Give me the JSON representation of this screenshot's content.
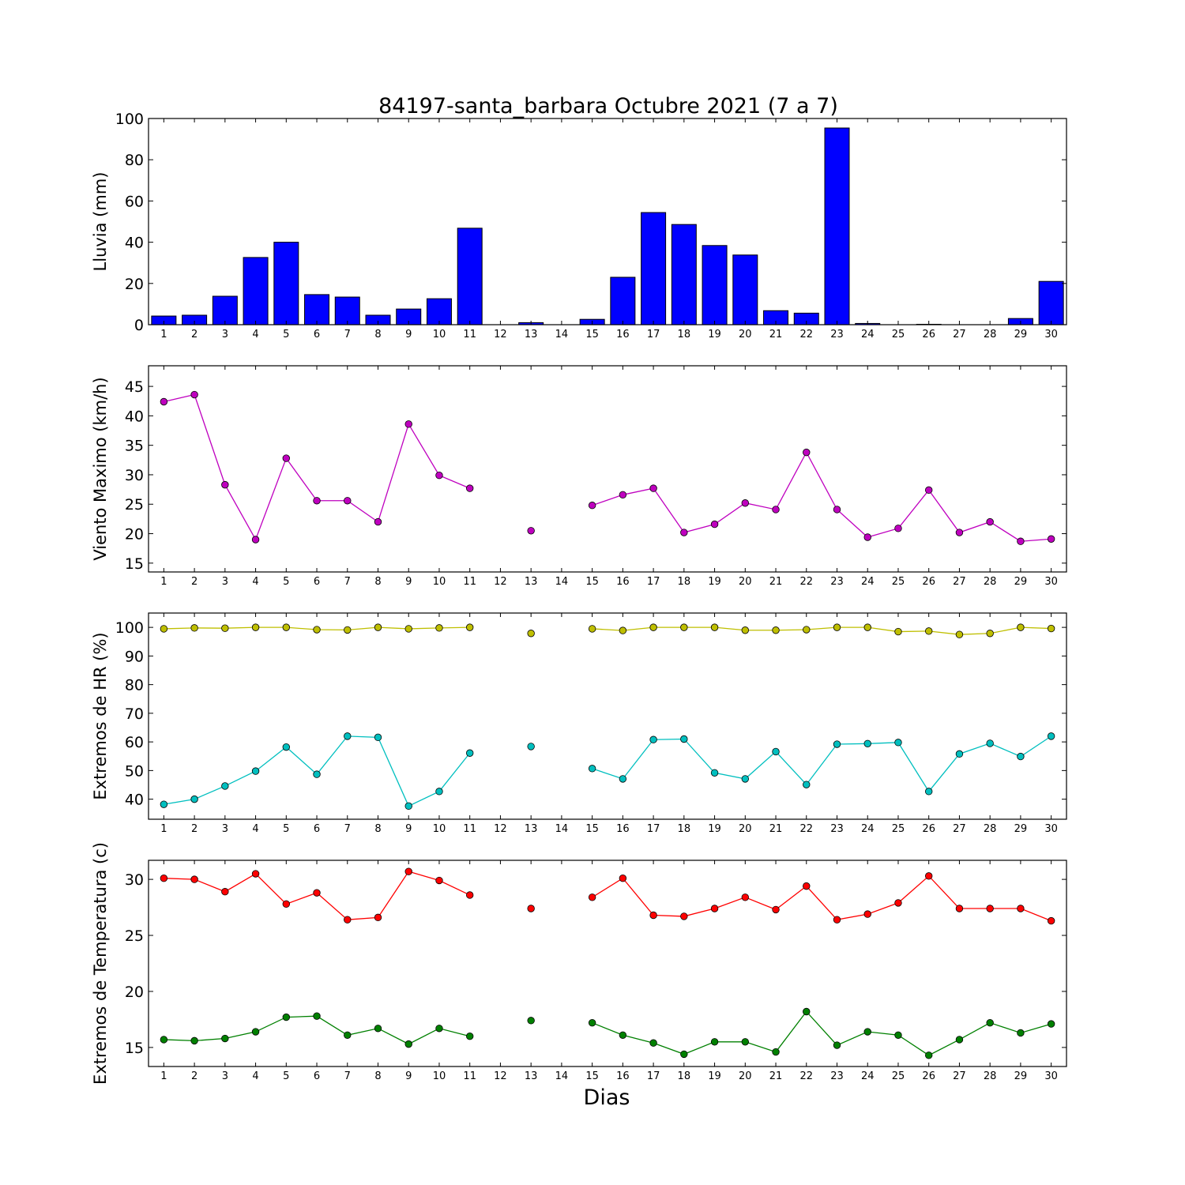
{
  "title": "84197-santa_barbara Octubre 2021  (7 a 7)",
  "xlabel": "Dias",
  "chart_data": [
    {
      "type": "bar",
      "ylabel": "Lluvia (mm)",
      "x": [
        1,
        2,
        3,
        4,
        5,
        6,
        7,
        8,
        9,
        10,
        11,
        12,
        13,
        14,
        15,
        16,
        17,
        18,
        19,
        20,
        21,
        22,
        23,
        24,
        25,
        26,
        27,
        28,
        29,
        30
      ],
      "x_tick_labels": [
        "1",
        "2",
        "3",
        "4",
        "5",
        "6",
        "7",
        "8",
        "9",
        "10",
        "11",
        "12",
        "13",
        "14",
        "15",
        "16",
        "17",
        "18",
        "19",
        "20",
        "21",
        "22",
        "23",
        "24",
        "25",
        "26",
        "27",
        "28",
        "29",
        "30"
      ],
      "values": [
        4.2,
        4.6,
        13.8,
        32.6,
        40.0,
        14.6,
        13.4,
        4.6,
        7.6,
        12.6,
        46.8,
        0,
        1.0,
        0,
        2.6,
        23.0,
        54.4,
        48.6,
        38.4,
        33.8,
        6.8,
        5.6,
        95.4,
        0.6,
        0,
        0.2,
        0,
        0,
        3.0,
        21.0
      ],
      "ylim": [
        0,
        100
      ],
      "yticks": [
        0,
        20,
        40,
        60,
        80,
        100
      ],
      "color": "#0000ff"
    },
    {
      "type": "line",
      "ylabel": "Viento Maximo (km/h)",
      "x": [
        1,
        2,
        3,
        4,
        5,
        6,
        7,
        8,
        9,
        10,
        11,
        12,
        13,
        14,
        15,
        16,
        17,
        18,
        19,
        20,
        21,
        22,
        23,
        24,
        25,
        26,
        27,
        28,
        29,
        30
      ],
      "x_tick_labels": [
        "1",
        "2",
        "3",
        "4",
        "5",
        "6",
        "7",
        "8",
        "9",
        "10",
        "11",
        "12",
        "13",
        "14",
        "15",
        "16",
        "17",
        "18",
        "19",
        "20",
        "21",
        "22",
        "23",
        "24",
        "25",
        "26",
        "27",
        "28",
        "29",
        "30"
      ],
      "ylim": [
        13.5,
        48.5
      ],
      "yticks": [
        15,
        20,
        25,
        30,
        35,
        40,
        45
      ],
      "series": [
        {
          "color": "#bf00bf",
          "values": [
            42.4,
            43.6,
            28.3,
            19.0,
            32.8,
            25.6,
            25.6,
            22.0,
            38.6,
            29.9,
            27.7,
            null,
            20.5,
            null,
            24.8,
            26.6,
            27.7,
            20.2,
            21.6,
            25.2,
            24.1,
            33.8,
            24.1,
            19.4,
            20.9,
            27.4,
            20.2,
            22.0,
            18.7,
            19.1
          ]
        }
      ]
    },
    {
      "type": "line",
      "ylabel": "Extremos de HR (%)",
      "x": [
        1,
        2,
        3,
        4,
        5,
        6,
        7,
        8,
        9,
        10,
        11,
        12,
        13,
        14,
        15,
        16,
        17,
        18,
        19,
        20,
        21,
        22,
        23,
        24,
        25,
        26,
        27,
        28,
        29,
        30
      ],
      "x_tick_labels": [
        "1",
        "2",
        "3",
        "4",
        "5",
        "6",
        "7",
        "8",
        "9",
        "10",
        "11",
        "12",
        "13",
        "14",
        "15",
        "16",
        "17",
        "18",
        "19",
        "20",
        "21",
        "22",
        "23",
        "24",
        "25",
        "26",
        "27",
        "28",
        "29",
        "30"
      ],
      "ylim": [
        33,
        105
      ],
      "yticks": [
        40,
        50,
        60,
        70,
        80,
        90,
        100
      ],
      "series": [
        {
          "color": "#bfbf00",
          "values": [
            99.5,
            99.8,
            99.7,
            100,
            100,
            99.2,
            99.1,
            100,
            99.5,
            99.8,
            100,
            null,
            97.9,
            null,
            99.5,
            98.9,
            100,
            100,
            100,
            99.0,
            99.0,
            99.2,
            100,
            100,
            98.5,
            98.7,
            97.5,
            97.9,
            100,
            99.6
          ]
        },
        {
          "color": "#00bfbf",
          "values": [
            38.2,
            40.0,
            44.6,
            49.8,
            58.2,
            48.7,
            62.0,
            61.6,
            37.6,
            42.7,
            56.1,
            null,
            58.4,
            null,
            50.7,
            47.1,
            60.8,
            61.0,
            49.2,
            47.1,
            56.6,
            45.1,
            59.2,
            59.4,
            59.8,
            42.7,
            55.8,
            59.5,
            54.9,
            62.0
          ]
        }
      ]
    },
    {
      "type": "line",
      "ylabel": "Extremos de Temperatura (c)",
      "x": [
        1,
        2,
        3,
        4,
        5,
        6,
        7,
        8,
        9,
        10,
        11,
        12,
        13,
        14,
        15,
        16,
        17,
        18,
        19,
        20,
        21,
        22,
        23,
        24,
        25,
        26,
        27,
        28,
        29,
        30
      ],
      "x_tick_labels": [
        "1",
        "2",
        "3",
        "4",
        "5",
        "6",
        "7",
        "8",
        "9",
        "10",
        "11",
        "12",
        "13",
        "14",
        "15",
        "16",
        "17",
        "18",
        "19",
        "20",
        "21",
        "22",
        "23",
        "24",
        "25",
        "26",
        "27",
        "28",
        "29",
        "30"
      ],
      "ylim": [
        13.3,
        31.7
      ],
      "yticks": [
        15,
        20,
        25,
        30
      ],
      "series": [
        {
          "color": "#ff0000",
          "values": [
            30.1,
            30.0,
            28.9,
            30.5,
            27.8,
            28.8,
            26.4,
            26.6,
            30.7,
            29.9,
            28.6,
            null,
            27.4,
            null,
            28.4,
            30.1,
            26.8,
            26.7,
            27.4,
            28.4,
            27.3,
            29.4,
            26.4,
            26.9,
            27.9,
            30.3,
            27.4,
            27.4,
            27.4,
            26.3
          ]
        },
        {
          "color": "#008000",
          "values": [
            15.7,
            15.6,
            15.8,
            16.4,
            17.7,
            17.8,
            16.1,
            16.7,
            15.3,
            16.7,
            16.0,
            null,
            17.4,
            null,
            17.2,
            16.1,
            15.4,
            14.4,
            15.5,
            15.5,
            14.6,
            18.2,
            15.2,
            16.4,
            16.1,
            14.3,
            15.7,
            17.2,
            16.3,
            17.1
          ]
        }
      ]
    }
  ]
}
